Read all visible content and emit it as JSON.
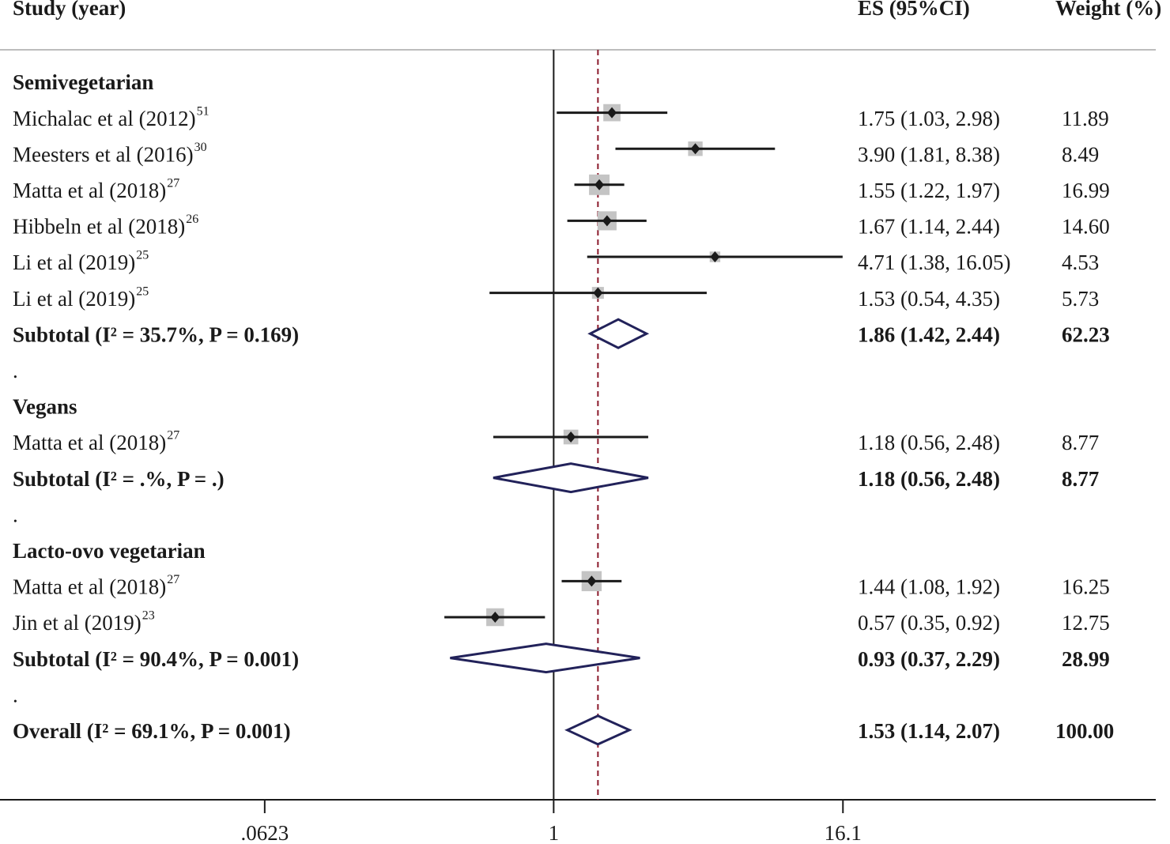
{
  "chart_data": {
    "type": "forest",
    "headers": {
      "study": "Study (year)",
      "es": "ES (95%CI)",
      "weight": "Weight (%)"
    },
    "log_scale": true,
    "xlim": [
      0.0049,
      325
    ],
    "xticks": [
      {
        "value": 0.0623,
        "label": ".0623"
      },
      1,
      16.1
    ],
    "null_line": 1,
    "colors": {
      "ci": "#1a1a1a",
      "box": "#c4c4c4",
      "point": "#1a1a1a",
      "diamond": "#22225a",
      "overall_line": "#8b1a2b"
    },
    "groups": [
      {
        "name": "Semivegetarian",
        "studies": [
          {
            "name": "Michalac et al (2012)",
            "ref": "51",
            "es": 1.75,
            "lo": 1.03,
            "hi": 2.98,
            "weight": 11.89,
            "ci_label": "1.75 (1.03, 2.98)",
            "weight_label": "11.89"
          },
          {
            "name": "Meesters et al (2016)",
            "ref": "30",
            "es": 3.9,
            "lo": 1.81,
            "hi": 8.38,
            "weight": 8.49,
            "ci_label": "3.90 (1.81, 8.38)",
            "weight_label": "8.49"
          },
          {
            "name": "Matta et al (2018)",
            "ref": "27",
            "es": 1.55,
            "lo": 1.22,
            "hi": 1.97,
            "weight": 16.99,
            "ci_label": "1.55 (1.22, 1.97)",
            "weight_label": "16.99"
          },
          {
            "name": "Hibbeln et al (2018)",
            "ref": "26",
            "es": 1.67,
            "lo": 1.14,
            "hi": 2.44,
            "weight": 14.6,
            "ci_label": "1.67 (1.14, 2.44)",
            "weight_label": "14.60"
          },
          {
            "name": "Li et al (2019)",
            "ref": "25",
            "es": 4.71,
            "lo": 1.38,
            "hi": 16.05,
            "weight": 4.53,
            "ci_label": "4.71 (1.38, 16.05)",
            "weight_label": "4.53"
          },
          {
            "name": "Li et al (2019)",
            "ref": "25",
            "es": 1.53,
            "lo": 0.54,
            "hi": 4.35,
            "weight": 5.73,
            "ci_label": "1.53 (0.54, 4.35)",
            "weight_label": "5.73"
          }
        ],
        "subtotal": {
          "label": "Subtotal  (I² = 35.7%, P = 0.169)",
          "es": 1.86,
          "lo": 1.42,
          "hi": 2.44,
          "ci_label": "1.86 (1.42, 2.44)",
          "weight_label": "62.23"
        },
        "separator": "."
      },
      {
        "name": "Vegans",
        "studies": [
          {
            "name": "Matta et al (2018)",
            "ref": "27",
            "es": 1.18,
            "lo": 0.56,
            "hi": 2.48,
            "weight": 8.77,
            "ci_label": "1.18 (0.56, 2.48)",
            "weight_label": "8.77"
          }
        ],
        "subtotal": {
          "label": "Subtotal  (I² = .%, P = .)",
          "es": 1.18,
          "lo": 0.56,
          "hi": 2.48,
          "ci_label": "1.18 (0.56, 2.48)",
          "weight_label": "8.77"
        },
        "separator": "."
      },
      {
        "name": "Lacto-ovo vegetarian",
        "studies": [
          {
            "name": "Matta et al (2018)",
            "ref": "27",
            "es": 1.44,
            "lo": 1.08,
            "hi": 1.92,
            "weight": 16.25,
            "ci_label": "1.44 (1.08, 1.92)",
            "weight_label": "16.25"
          },
          {
            "name": "Jin et al (2019)",
            "ref": "23",
            "es": 0.57,
            "lo": 0.35,
            "hi": 0.92,
            "weight": 12.75,
            "ci_label": "0.57 (0.35, 0.92)",
            "weight_label": "12.75"
          }
        ],
        "subtotal": {
          "label": "Subtotal  (I² = 90.4%, P = 0.001)",
          "es": 0.93,
          "lo": 0.37,
          "hi": 2.29,
          "ci_label": "0.93 (0.37, 2.29)",
          "weight_label": "28.99"
        },
        "separator": "."
      }
    ],
    "overall": {
      "label": "Overall  (I² = 69.1%, P = 0.001)",
      "es": 1.53,
      "lo": 1.14,
      "hi": 2.07,
      "ci_label": "1.53 (1.14, 2.07)",
      "weight_label": "100.00"
    }
  }
}
